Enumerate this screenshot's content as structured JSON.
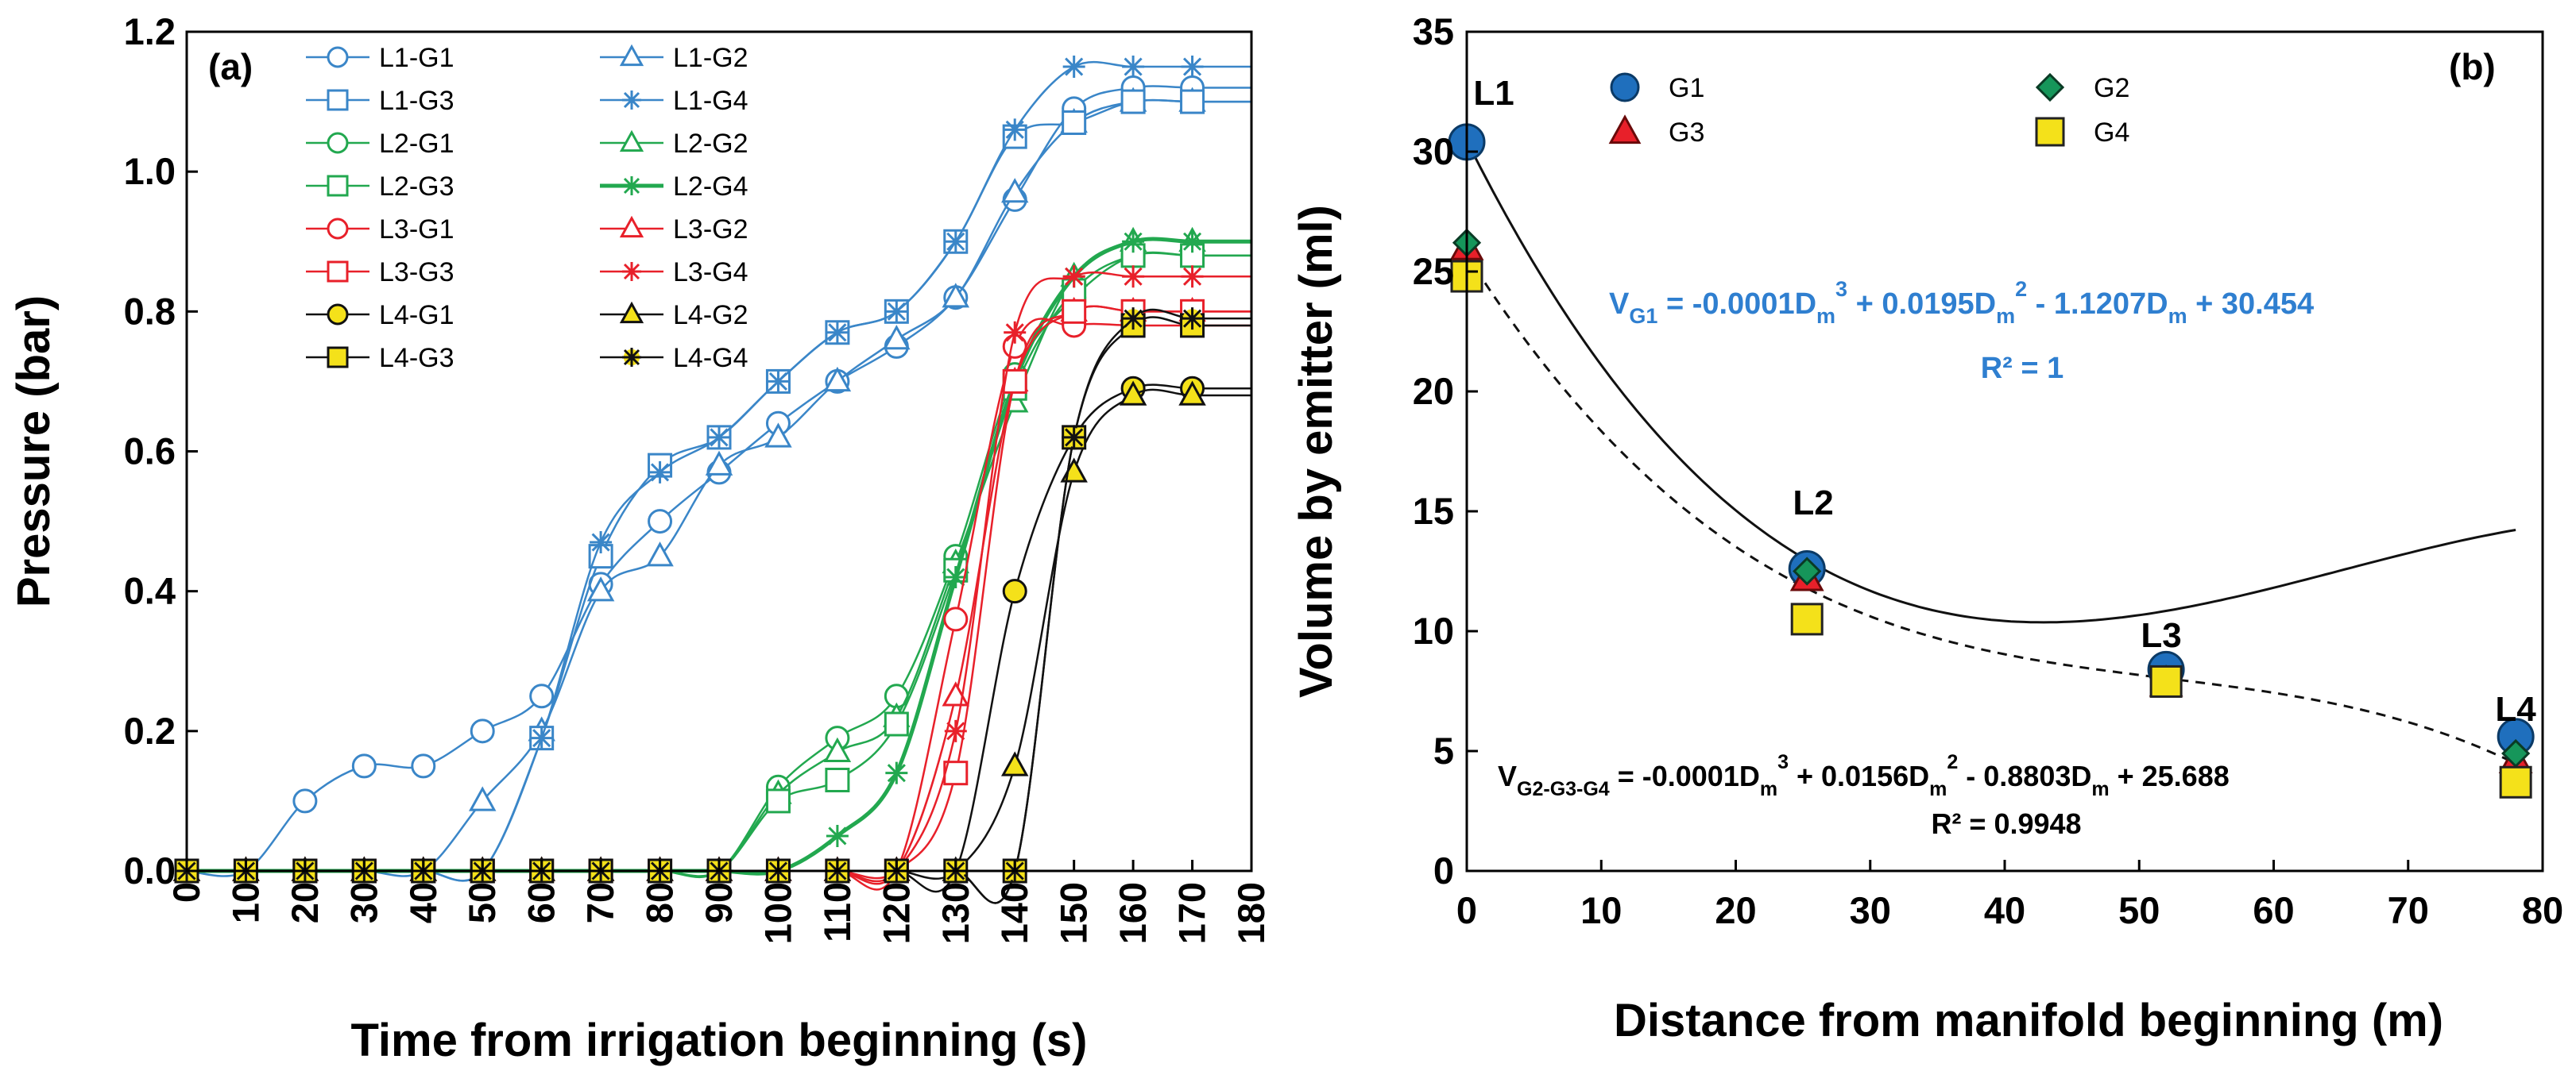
{
  "colors": {
    "L1": "#3a86c8",
    "L2": "#22a84f",
    "L3": "#e8202a",
    "L4": "#111111",
    "L4_fill": "#f4e11a",
    "G1_b": "#1f6fbd",
    "G2_b": "#16965a",
    "G3_b": "#e8202a",
    "G4_b": "#f4e11a",
    "eq": "#2f7fd0"
  },
  "chart_data": [
    {
      "type": "line",
      "panel_label": "(a)",
      "xlabel": "Time from irrigation beginning (s)",
      "ylabel": "Pressure (bar)",
      "xlim": [
        0,
        180
      ],
      "ylim": [
        0,
        1.2
      ],
      "xticks": [
        "0",
        "10",
        "20",
        "30",
        "40",
        "50",
        "60",
        "70",
        "80",
        "90",
        "100",
        "110",
        "120",
        "130",
        "140",
        "150",
        "160",
        "170",
        "180"
      ],
      "yticks": [
        "0.0",
        "0.2",
        "0.4",
        "0.6",
        "0.8",
        "1.0",
        "1.2"
      ],
      "x": [
        0,
        10,
        20,
        30,
        40,
        50,
        60,
        70,
        80,
        90,
        100,
        110,
        120,
        130,
        140,
        150,
        160,
        170
      ],
      "series": [
        {
          "name": "L1-G1",
          "line": "L1",
          "marker": "circle",
          "values": [
            0,
            0,
            0.1,
            0.15,
            0.15,
            0.2,
            0.25,
            0.41,
            0.5,
            0.57,
            0.64,
            0.7,
            0.75,
            0.82,
            0.96,
            1.09,
            1.12,
            1.12
          ]
        },
        {
          "name": "L1-G2",
          "line": "L1",
          "marker": "triangle",
          "values": [
            0,
            0,
            0,
            0,
            0,
            0.1,
            0.2,
            0.4,
            0.45,
            0.58,
            0.62,
            0.7,
            0.76,
            0.82,
            0.97,
            1.07,
            1.1,
            1.1
          ]
        },
        {
          "name": "L1-G3",
          "line": "L1",
          "marker": "square",
          "values": [
            0,
            0,
            0,
            0,
            0,
            0,
            0.19,
            0.45,
            0.58,
            0.62,
            0.7,
            0.77,
            0.8,
            0.9,
            1.05,
            1.07,
            1.1,
            1.1
          ]
        },
        {
          "name": "L1-G4",
          "line": "L1",
          "marker": "asterisk",
          "values": [
            0,
            0,
            0,
            0,
            0,
            0,
            0.19,
            0.47,
            0.57,
            0.62,
            0.7,
            0.77,
            0.8,
            0.9,
            1.06,
            1.15,
            1.15,
            1.15
          ]
        },
        {
          "name": "L2-G1",
          "line": "L2",
          "marker": "circle",
          "values": [
            0,
            0,
            0,
            0,
            0,
            0,
            0,
            0,
            0,
            0,
            0.12,
            0.19,
            0.25,
            0.45,
            0.71,
            0.82,
            0.88,
            0.88
          ]
        },
        {
          "name": "L2-G2",
          "line": "L2",
          "marker": "triangle",
          "values": [
            0,
            0,
            0,
            0,
            0,
            0,
            0,
            0,
            0,
            0,
            0.11,
            0.17,
            0.22,
            0.44,
            0.67,
            0.85,
            0.9,
            0.9
          ]
        },
        {
          "name": "L2-G3",
          "line": "L2",
          "marker": "square",
          "values": [
            0,
            0,
            0,
            0,
            0,
            0,
            0,
            0,
            0,
            0,
            0.1,
            0.13,
            0.21,
            0.43,
            0.69,
            0.83,
            0.88,
            0.88
          ]
        },
        {
          "name": "L2-G4",
          "line": "L2",
          "marker": "asterisk",
          "values": [
            0,
            0,
            0,
            0,
            0,
            0,
            0,
            0,
            0,
            0,
            0,
            0.05,
            0.14,
            0.42,
            0.7,
            0.85,
            0.9,
            0.9
          ]
        },
        {
          "name": "L3-G1",
          "line": "L3",
          "marker": "circle",
          "values": [
            0,
            0,
            0,
            0,
            0,
            0,
            0,
            0,
            0,
            0,
            0,
            0,
            0,
            0.36,
            0.75,
            0.78,
            0.78,
            0.78
          ]
        },
        {
          "name": "L3-G2",
          "line": "L3",
          "marker": "triangle",
          "values": [
            0,
            0,
            0,
            0,
            0,
            0,
            0,
            0,
            0,
            0,
            0,
            0,
            0,
            0.25,
            0.7,
            0.8,
            0.8,
            0.8
          ]
        },
        {
          "name": "L3-G3",
          "line": "L3",
          "marker": "square",
          "values": [
            0,
            0,
            0,
            0,
            0,
            0,
            0,
            0,
            0,
            0,
            0,
            0,
            0,
            0.14,
            0.7,
            0.8,
            0.8,
            0.8
          ]
        },
        {
          "name": "L3-G4",
          "line": "L3",
          "marker": "asterisk",
          "values": [
            0,
            0,
            0,
            0,
            0,
            0,
            0,
            0,
            0,
            0,
            0,
            0,
            0,
            0.2,
            0.77,
            0.85,
            0.85,
            0.85
          ]
        },
        {
          "name": "L4-G1",
          "line": "L4",
          "marker": "circle",
          "values": [
            0,
            0,
            0,
            0,
            0,
            0,
            0,
            0,
            0,
            0,
            0,
            0,
            0,
            0,
            0.4,
            0.62,
            0.69,
            0.69
          ]
        },
        {
          "name": "L4-G2",
          "line": "L4",
          "marker": "triangle",
          "values": [
            0,
            0,
            0,
            0,
            0,
            0,
            0,
            0,
            0,
            0,
            0,
            0,
            0,
            0,
            0.15,
            0.57,
            0.68,
            0.68
          ]
        },
        {
          "name": "L4-G3",
          "line": "L4",
          "marker": "square",
          "values": [
            0,
            0,
            0,
            0,
            0,
            0,
            0,
            0,
            0,
            0,
            0,
            0,
            0,
            0,
            0,
            0.62,
            0.78,
            0.78
          ]
        },
        {
          "name": "L4-G4",
          "line": "L4",
          "marker": "asterisk",
          "values": [
            0,
            0,
            0,
            0,
            0,
            0,
            0,
            0,
            0,
            0,
            0,
            0,
            0,
            0,
            0,
            0.62,
            0.79,
            0.79
          ]
        }
      ],
      "legend_position": "top-left"
    },
    {
      "type": "scatter",
      "panel_label": "(b)",
      "xlabel": "Distance from manifold beginning (m)",
      "ylabel": "Volume by emitter (ml)",
      "xlim": [
        0,
        80
      ],
      "ylim": [
        0,
        35
      ],
      "xticks": [
        "0",
        "10",
        "20",
        "30",
        "40",
        "50",
        "60",
        "70",
        "80"
      ],
      "yticks": [
        "0",
        "5",
        "10",
        "15",
        "20",
        "25",
        "30",
        "35"
      ],
      "point_labels": [
        {
          "text": "L1",
          "x": 0
        },
        {
          "text": "L2",
          "x": 25.3
        },
        {
          "text": "L3",
          "x": 52
        },
        {
          "text": "L4",
          "x": 78
        }
      ],
      "series": [
        {
          "name": "G1",
          "marker": "circle",
          "x": [
            0,
            25.3,
            52,
            78
          ],
          "y": [
            30.4,
            12.6,
            8.4,
            5.6
          ]
        },
        {
          "name": "G2",
          "marker": "diamond",
          "x": [
            0,
            25.3,
            52,
            78
          ],
          "y": [
            26.2,
            12.5,
            8.0,
            4.9
          ]
        },
        {
          "name": "G3",
          "marker": "triangle",
          "x": [
            0,
            25.3,
            52,
            78
          ],
          "y": [
            26.0,
            12.2,
            7.8,
            4.6
          ]
        },
        {
          "name": "G4",
          "marker": "square",
          "x": [
            0,
            25.3,
            52,
            78
          ],
          "y": [
            24.8,
            10.5,
            7.9,
            3.7
          ]
        }
      ],
      "fits": [
        {
          "name": "G1",
          "style": "solid",
          "coeffs": [
            -0.0001,
            0.0195,
            -1.1207,
            30.454
          ],
          "eq_prefix": "V",
          "eq_sub": "G1",
          "eq_mid": " = -0.0001D",
          "eq_sub2": "m",
          "eq_sup2": "3",
          "eq_mid2": " + 0.0195D",
          "eq_sub3": "m",
          "eq_sup3": "2",
          "eq_mid3": " - 1.1207D",
          "eq_sub4": "m",
          "eq_tail": " + 30.454",
          "r2": "R² = 1"
        },
        {
          "name": "G2-G3-G4",
          "style": "dashed",
          "coeffs": [
            -0.0001,
            0.0156,
            -0.8803,
            25.688
          ],
          "eq_prefix": "V",
          "eq_sub": "G2-G3-G4",
          "eq_mid": " = -0.0001D",
          "eq_sub2": "m",
          "eq_sup2": "3",
          "eq_mid2": " + 0.0156D",
          "eq_sub3": "m",
          "eq_sup3": "2",
          "eq_mid3": " - 0.8803D",
          "eq_sub4": "m",
          "eq_tail": " + 25.688",
          "r2": "R² = 0.9948"
        }
      ],
      "legend_position": "top"
    }
  ]
}
